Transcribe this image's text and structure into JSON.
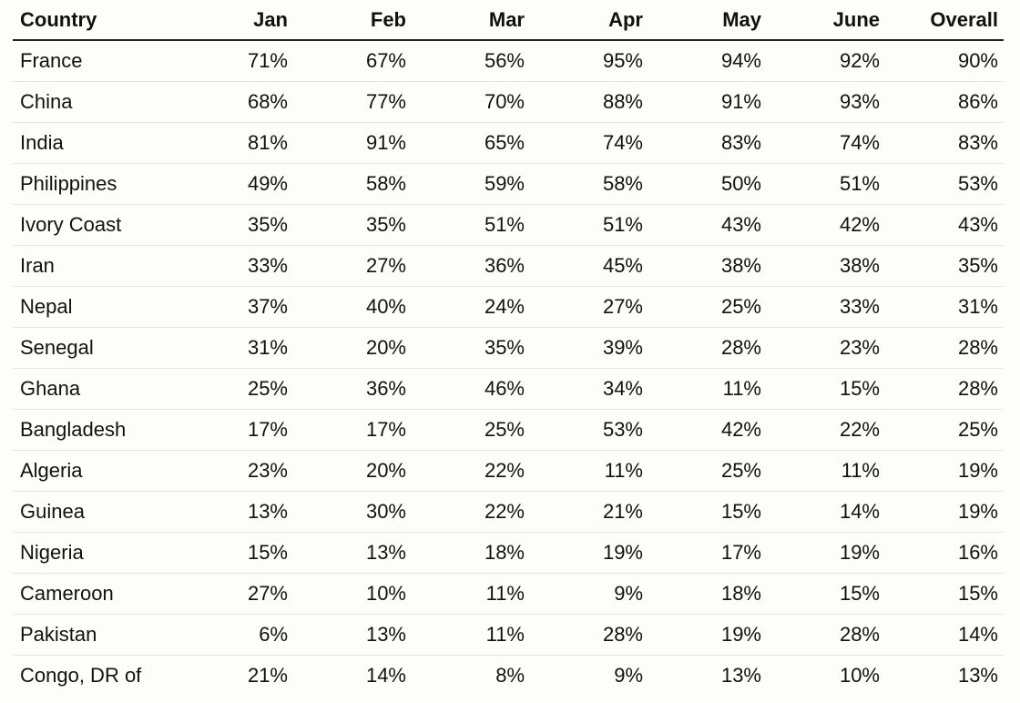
{
  "chart_data": {
    "type": "table",
    "columns": [
      "Country",
      "Jan",
      "Feb",
      "Mar",
      "Apr",
      "May",
      "June",
      "Overall"
    ],
    "rows": [
      {
        "country": "France",
        "values": [
          "71%",
          "67%",
          "56%",
          "95%",
          "94%",
          "92%",
          "90%"
        ]
      },
      {
        "country": "China",
        "values": [
          "68%",
          "77%",
          "70%",
          "88%",
          "91%",
          "93%",
          "86%"
        ]
      },
      {
        "country": "India",
        "values": [
          "81%",
          "91%",
          "65%",
          "74%",
          "83%",
          "74%",
          "83%"
        ]
      },
      {
        "country": "Philippines",
        "values": [
          "49%",
          "58%",
          "59%",
          "58%",
          "50%",
          "51%",
          "53%"
        ]
      },
      {
        "country": "Ivory Coast",
        "values": [
          "35%",
          "35%",
          "51%",
          "51%",
          "43%",
          "42%",
          "43%"
        ]
      },
      {
        "country": "Iran",
        "values": [
          "33%",
          "27%",
          "36%",
          "45%",
          "38%",
          "38%",
          "35%"
        ]
      },
      {
        "country": "Nepal",
        "values": [
          "37%",
          "40%",
          "24%",
          "27%",
          "25%",
          "33%",
          "31%"
        ]
      },
      {
        "country": "Senegal",
        "values": [
          "31%",
          "20%",
          "35%",
          "39%",
          "28%",
          "23%",
          "28%"
        ]
      },
      {
        "country": "Ghana",
        "values": [
          "25%",
          "36%",
          "46%",
          "34%",
          "11%",
          "15%",
          "28%"
        ]
      },
      {
        "country": "Bangladesh",
        "values": [
          "17%",
          "17%",
          "25%",
          "53%",
          "42%",
          "22%",
          "25%"
        ]
      },
      {
        "country": "Algeria",
        "values": [
          "23%",
          "20%",
          "22%",
          "11%",
          "25%",
          "11%",
          "19%"
        ]
      },
      {
        "country": "Guinea",
        "values": [
          "13%",
          "30%",
          "22%",
          "21%",
          "15%",
          "14%",
          "19%"
        ]
      },
      {
        "country": "Nigeria",
        "values": [
          "15%",
          "13%",
          "18%",
          "19%",
          "17%",
          "19%",
          "16%"
        ]
      },
      {
        "country": "Cameroon",
        "values": [
          "27%",
          "10%",
          "11%",
          "9%",
          "18%",
          "15%",
          "15%"
        ]
      },
      {
        "country": "Pakistan",
        "values": [
          "6%",
          "13%",
          "11%",
          "28%",
          "19%",
          "28%",
          "14%"
        ]
      },
      {
        "country": "Congo, DR of",
        "values": [
          "21%",
          "14%",
          "8%",
          "9%",
          "13%",
          "10%",
          "13%"
        ]
      }
    ]
  },
  "colors": {
    "background": "#fdfdfb",
    "text": "#111111",
    "header_rule": "#222222",
    "row_rule": "#e6e6e6"
  }
}
